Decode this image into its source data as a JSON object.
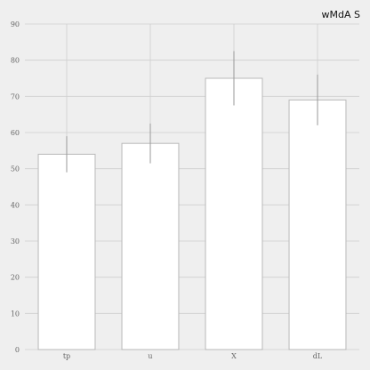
{
  "chart_data": {
    "type": "bar",
    "categories": [
      "tp",
      "u",
      "X",
      "dL"
    ],
    "series": [
      {
        "name": "wMdA S",
        "values": [
          54,
          57,
          75,
          69
        ],
        "error": [
          5,
          5.5,
          7.5,
          7
        ],
        "color": "#ffffff",
        "edge_color": "#b8b8b8"
      }
    ],
    "ylim": [
      0,
      90
    ],
    "yticks": [
      0,
      10,
      20,
      30,
      40,
      50,
      60,
      70,
      80,
      90
    ],
    "grid": true,
    "legend_position": "top-right",
    "background": "#efefef",
    "grid_color": "#cfcfcf",
    "error_color": "#9a9a9a"
  }
}
